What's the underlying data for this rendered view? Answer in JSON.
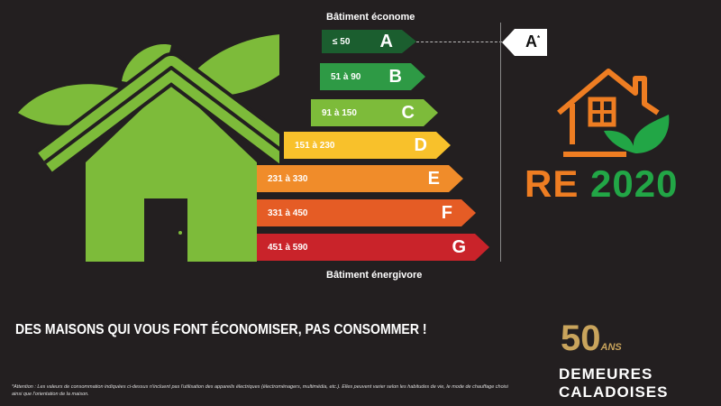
{
  "label_top": "Bâtiment économe",
  "label_bottom": "Bâtiment énergivore",
  "classes": [
    {
      "letter": "A",
      "range": "≤ 50",
      "color": "#1b5e2f"
    },
    {
      "letter": "B",
      "range": "51 à 90",
      "color": "#2e9a45"
    },
    {
      "letter": "C",
      "range": "91 à 150",
      "color": "#7dbb3a"
    },
    {
      "letter": "D",
      "range": "151 à 230",
      "color": "#f8c12b"
    },
    {
      "letter": "E",
      "range": "231 à 330",
      "color": "#f08c2a"
    },
    {
      "letter": "F",
      "range": "331 à 450",
      "color": "#e55c25"
    },
    {
      "letter": "G",
      "range": "451 à 590",
      "color": "#c9232a"
    }
  ],
  "rating_tag": "A",
  "rating_sup": "*",
  "re_logo": {
    "re": "RE",
    "year": "2020",
    "orange": "#ee7d22",
    "green": "#22a646"
  },
  "slogan": "DES MAISONS QUI VOUS FONT ÉCONOMISER, PAS CONSOMMER !",
  "footnote": "*Attention : Les valeurs de consommation indiquées ci-dessus n'incluent pas l'utilisation des appareils électriques (électroménagers, multimédia, etc.). Elles peuvent varier selon les habitudes de vie, le mode de chauffage choisi ainsi que l'orientation de la maison.",
  "brand": {
    "years": "50",
    "ans": "ANS",
    "line1": "DEMEURES",
    "line2": "CALADOISES",
    "gold": "#c9a45c"
  }
}
